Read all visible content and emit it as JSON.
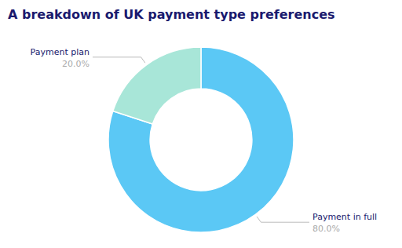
{
  "chart_data": {
    "type": "donut",
    "title": "A breakdown of UK payment type preferences",
    "categories": [
      "Payment in full",
      "Payment plan"
    ],
    "values": [
      80.0,
      20.0
    ],
    "value_labels": [
      "80.0%",
      "20.0%"
    ],
    "colors": [
      "#5bc8f5",
      "#a8e6d8"
    ]
  }
}
